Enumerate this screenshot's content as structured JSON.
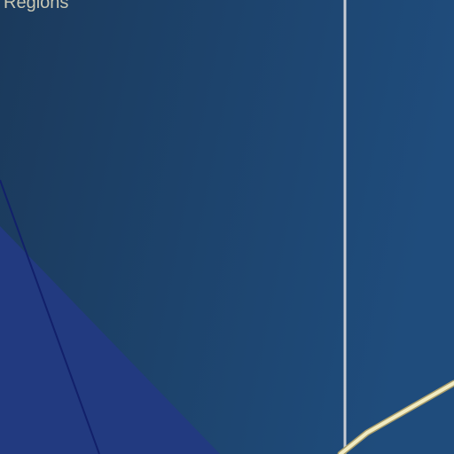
{
  "map": {
    "region_label": "l Regions",
    "colors": {
      "background_left": "#1b3a5c",
      "background_right": "#1f4c7c",
      "region_fill": "#223a80",
      "divider": "#c8ccd4",
      "boundary_line": "#12206a",
      "road": "#f2ecc2",
      "road_edge": "#a89c6a",
      "label": "#c9c8b4"
    }
  }
}
